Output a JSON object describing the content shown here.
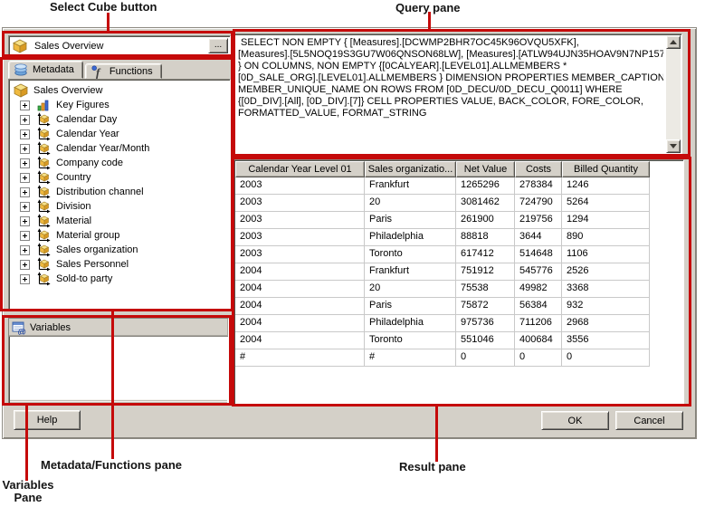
{
  "annotations": {
    "select_cube": "Select Cube button",
    "query_pane": "Query pane",
    "metadata_functions_pane": "Metadata/Functions pane",
    "variables_pane": "Variables\nPane",
    "result_pane": "Result pane",
    "accent_color": "#c50a0a"
  },
  "dialog": {
    "cube_selector": {
      "value": "Sales Overview",
      "icon": "cube-icon",
      "browse_label": "..."
    },
    "tabs": [
      {
        "label": "Metadata",
        "icon": "metadata-icon",
        "selected": true
      },
      {
        "label": "Functions",
        "icon": "functions-icon",
        "selected": false
      }
    ],
    "metadata_tree": [
      {
        "label": "Sales Overview",
        "icon": "cube-icon",
        "expandable": false
      },
      {
        "label": "Key Figures",
        "icon": "key-figures-icon",
        "expandable": true
      },
      {
        "label": "Calendar Day",
        "icon": "dimension-icon",
        "expandable": true
      },
      {
        "label": "Calendar Year",
        "icon": "dimension-icon",
        "expandable": true
      },
      {
        "label": "Calendar Year/Month",
        "icon": "dimension-icon",
        "expandable": true
      },
      {
        "label": "Company code",
        "icon": "dimension-icon",
        "expandable": true
      },
      {
        "label": "Country",
        "icon": "dimension-icon",
        "expandable": true
      },
      {
        "label": "Distribution channel",
        "icon": "dimension-icon",
        "expandable": true
      },
      {
        "label": "Division",
        "icon": "dimension-icon",
        "expandable": true
      },
      {
        "label": "Material",
        "icon": "dimension-icon",
        "expandable": true
      },
      {
        "label": "Material group",
        "icon": "dimension-icon",
        "expandable": true
      },
      {
        "label": "Sales organization",
        "icon": "dimension-icon",
        "expandable": true
      },
      {
        "label": "Sales Personnel",
        "icon": "dimension-icon",
        "expandable": true
      },
      {
        "label": "Sold-to party",
        "icon": "dimension-icon",
        "expandable": true
      }
    ],
    "variables": {
      "title": "Variables",
      "icon": "variables-icon"
    },
    "query": {
      "text": " SELECT NON EMPTY { [Measures].[DCWMP2BHR7OC45K96OVQU5XFK],\n[Measures].[5L5NOQ19S3GU7W06QNSON68LW], [Measures].[ATLW94UJN35HOAV9N7NP157P6]\n} ON COLUMNS, NON EMPTY {[0CALYEAR].[LEVEL01].ALLMEMBERS *\n[0D_SALE_ORG].[LEVEL01].ALLMEMBERS } DIMENSION PROPERTIES MEMBER_CAPTION,\nMEMBER_UNIQUE_NAME ON ROWS FROM [0D_DECU/0D_DECU_Q0011] WHERE\n{[0D_DIV].[All], [0D_DIV].[7]} CELL PROPERTIES VALUE, BACK_COLOR, FORE_COLOR,\nFORMATTED_VALUE, FORMAT_STRING"
    },
    "result_table": {
      "columns": [
        "Calendar Year Level 01",
        "Sales organizatio...",
        "Net Value",
        "Costs",
        "Billed Quantity"
      ],
      "rows": [
        [
          "2003",
          "Frankfurt",
          "1265296",
          "278384",
          "1246"
        ],
        [
          "2003",
          "20",
          "3081462",
          "724790",
          "5264"
        ],
        [
          "2003",
          "Paris",
          "261900",
          "219756",
          "1294"
        ],
        [
          "2003",
          "Philadelphia",
          "88818",
          "3644",
          "890"
        ],
        [
          "2003",
          "Toronto",
          "617412",
          "514648",
          "1106"
        ],
        [
          "2004",
          "Frankfurt",
          "751912",
          "545776",
          "2526"
        ],
        [
          "2004",
          "20",
          "75538",
          "49982",
          "3368"
        ],
        [
          "2004",
          "Paris",
          "75872",
          "56384",
          "932"
        ],
        [
          "2004",
          "Philadelphia",
          "975736",
          "711206",
          "2968"
        ],
        [
          "2004",
          "Toronto",
          "551046",
          "400684",
          "3556"
        ],
        [
          "#",
          "#",
          "0",
          "0",
          "0"
        ]
      ]
    },
    "buttons": {
      "help": "Help",
      "ok": "OK",
      "cancel": "Cancel"
    }
  }
}
